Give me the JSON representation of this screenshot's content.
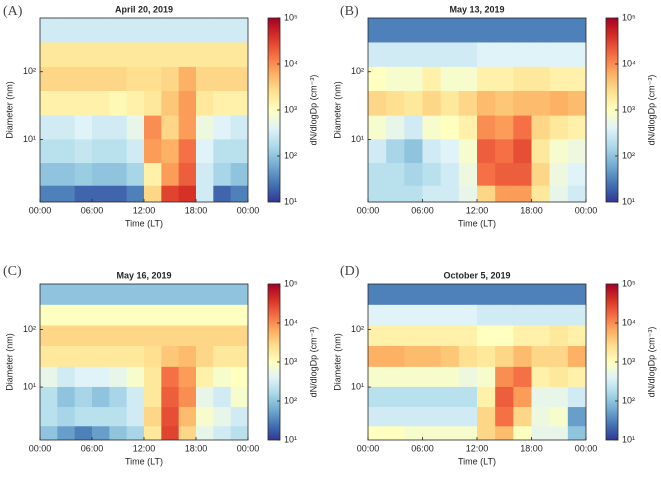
{
  "chart_data": [
    {
      "type": "heatmap",
      "panel_label": "(A)",
      "title": "April 20, 2019",
      "x_label": "Time (LT)",
      "y_label": "Diameter (nm)",
      "colorbar_label": "dN/dlogDp (cm⁻³)",
      "x": [
        1,
        3,
        5,
        7,
        9,
        11,
        13,
        15,
        17,
        19,
        21,
        23
      ],
      "y": [
        1.5,
        3,
        7,
        15,
        35,
        80,
        180,
        420
      ],
      "z": [
        [
          30,
          30,
          20,
          20,
          20,
          30,
          3000,
          30000,
          40000,
          300,
          20,
          30
        ],
        [
          100,
          100,
          120,
          100,
          100,
          150,
          1500,
          8000,
          20000,
          300,
          150,
          100
        ],
        [
          200,
          200,
          250,
          200,
          200,
          300,
          8000,
          6000,
          15000,
          400,
          200,
          200
        ],
        [
          300,
          300,
          400,
          300,
          300,
          500,
          10000,
          3000,
          8000,
          600,
          400,
          300
        ],
        [
          1500,
          1500,
          1500,
          1500,
          1200,
          1500,
          2000,
          4000,
          8000,
          2000,
          1500,
          1500
        ],
        [
          3000,
          3000,
          3000,
          3000,
          3000,
          2500,
          2500,
          3000,
          6000,
          3000,
          3000,
          3000
        ],
        [
          2000,
          2000,
          2000,
          2000,
          2000,
          2000,
          2000,
          2000,
          2000,
          2000,
          2000,
          2000
        ],
        [
          300,
          300,
          300,
          300,
          300,
          300,
          300,
          300,
          300,
          300,
          300,
          300
        ]
      ],
      "xlim": [
        0,
        24
      ],
      "xticks": [
        {
          "value": 0,
          "label": "00:00"
        },
        {
          "value": 6,
          "label": "06:00"
        },
        {
          "value": 12,
          "label": "12:00"
        },
        {
          "value": 18,
          "label": "18:00"
        },
        {
          "value": 24,
          "label": "00:00"
        }
      ],
      "ylim": [
        1.2,
        620
      ],
      "yticks": [
        {
          "value": 10,
          "label": "10¹"
        },
        {
          "value": 100,
          "label": "10²"
        }
      ],
      "ylog": true,
      "clim": [
        10,
        100000
      ],
      "cticks": [
        {
          "value": 10,
          "label": "10¹"
        },
        {
          "value": 100,
          "label": "10²"
        },
        {
          "value": 1000,
          "label": "10³"
        },
        {
          "value": 10000,
          "label": "10⁴"
        },
        {
          "value": 100000,
          "label": "10⁵"
        }
      ],
      "clog": true,
      "colormap": [
        "#313695",
        "#4575b4",
        "#74add1",
        "#abd9e9",
        "#e0f3f8",
        "#ffffbf",
        "#fee090",
        "#fdae61",
        "#f46d43",
        "#d73027",
        "#a50026"
      ]
    },
    {
      "type": "heatmap",
      "panel_label": "(B)",
      "title": "May 13, 2019",
      "x_label": "Time (LT)",
      "y_label": "Diameter (nm)",
      "colorbar_label": "dN/dlogDp (cm⁻³)",
      "x": [
        1,
        3,
        5,
        7,
        9,
        11,
        13,
        15,
        17,
        19,
        21,
        23
      ],
      "y": [
        1.5,
        3,
        7,
        15,
        35,
        80,
        180,
        420
      ],
      "z": [
        [
          200,
          200,
          200,
          300,
          300,
          500,
          3000,
          8000,
          8000,
          2000,
          500,
          300
        ],
        [
          200,
          200,
          150,
          200,
          300,
          600,
          15000,
          20000,
          20000,
          3000,
          600,
          400
        ],
        [
          300,
          150,
          100,
          300,
          400,
          800,
          20000,
          15000,
          25000,
          2000,
          800,
          600
        ],
        [
          800,
          500,
          300,
          800,
          1000,
          1500,
          10000,
          8000,
          15000,
          3000,
          2000,
          1500
        ],
        [
          3000,
          2500,
          2000,
          3000,
          2000,
          3000,
          5000,
          4000,
          5000,
          5000,
          6000,
          5000
        ],
        [
          1000,
          800,
          800,
          1500,
          800,
          800,
          1500,
          1500,
          2000,
          2000,
          1500,
          1500
        ],
        [
          300,
          300,
          300,
          300,
          300,
          300,
          400,
          400,
          400,
          400,
          400,
          400
        ],
        [
          30,
          30,
          30,
          30,
          30,
          30,
          30,
          30,
          30,
          30,
          30,
          30
        ]
      ],
      "xlim": [
        0,
        24
      ],
      "xticks": [
        {
          "value": 0,
          "label": "00:00"
        },
        {
          "value": 6,
          "label": "06:00"
        },
        {
          "value": 12,
          "label": "12:00"
        },
        {
          "value": 18,
          "label": "18:00"
        },
        {
          "value": 24,
          "label": "00:00"
        }
      ],
      "ylim": [
        1.2,
        620
      ],
      "yticks": [
        {
          "value": 10,
          "label": "10¹"
        },
        {
          "value": 100,
          "label": "10²"
        }
      ],
      "ylog": true,
      "clim": [
        10,
        100000
      ],
      "cticks": [
        {
          "value": 10,
          "label": "10¹"
        },
        {
          "value": 100,
          "label": "10²"
        },
        {
          "value": 1000,
          "label": "10³"
        },
        {
          "value": 10000,
          "label": "10⁴"
        },
        {
          "value": 100000,
          "label": "10⁵"
        }
      ],
      "clog": true,
      "colormap": [
        "#313695",
        "#4575b4",
        "#74add1",
        "#abd9e9",
        "#e0f3f8",
        "#ffffbf",
        "#fee090",
        "#fdae61",
        "#f46d43",
        "#d73027",
        "#a50026"
      ]
    },
    {
      "type": "heatmap",
      "panel_label": "(C)",
      "title": "May 16, 2019",
      "x_label": "Time (LT)",
      "y_label": "Diameter (nm)",
      "colorbar_label": "dN/dlogDp (cm⁻³)",
      "x": [
        1,
        3,
        5,
        7,
        9,
        11,
        13,
        15,
        17,
        19,
        21,
        23
      ],
      "y": [
        1.5,
        3,
        7,
        15,
        35,
        80,
        180,
        420
      ],
      "z": [
        [
          100,
          50,
          30,
          50,
          100,
          150,
          2000,
          30000,
          3000,
          500,
          300,
          200
        ],
        [
          200,
          150,
          200,
          200,
          200,
          300,
          3000,
          25000,
          5000,
          800,
          500,
          300
        ],
        [
          200,
          100,
          150,
          100,
          150,
          300,
          2000,
          20000,
          10000,
          500,
          300,
          800
        ],
        [
          500,
          300,
          400,
          400,
          500,
          800,
          2000,
          15000,
          8000,
          1500,
          800,
          1000
        ],
        [
          2000,
          2000,
          2000,
          2000,
          2000,
          2000,
          2500,
          4000,
          5000,
          3000,
          2000,
          2000
        ],
        [
          3000,
          3000,
          3000,
          3000,
          3000,
          3000,
          3000,
          3000,
          3000,
          3000,
          3000,
          3000
        ],
        [
          1000,
          1000,
          1000,
          1000,
          1000,
          1000,
          1000,
          1000,
          1000,
          1000,
          1000,
          1000
        ],
        [
          100,
          100,
          100,
          100,
          100,
          100,
          100,
          100,
          100,
          100,
          100,
          100
        ]
      ],
      "xlim": [
        0,
        24
      ],
      "xticks": [
        {
          "value": 0,
          "label": "00:00"
        },
        {
          "value": 6,
          "label": "06:00"
        },
        {
          "value": 12,
          "label": "12:00"
        },
        {
          "value": 18,
          "label": "18:00"
        },
        {
          "value": 24,
          "label": "00:00"
        }
      ],
      "ylim": [
        1.2,
        620
      ],
      "yticks": [
        {
          "value": 10,
          "label": "10¹"
        },
        {
          "value": 100,
          "label": "10²"
        }
      ],
      "ylog": true,
      "clim": [
        10,
        100000
      ],
      "cticks": [
        {
          "value": 10,
          "label": "10¹"
        },
        {
          "value": 100,
          "label": "10²"
        },
        {
          "value": 1000,
          "label": "10³"
        },
        {
          "value": 10000,
          "label": "10⁴"
        },
        {
          "value": 100000,
          "label": "10⁵"
        }
      ],
      "clog": true,
      "colormap": [
        "#313695",
        "#4575b4",
        "#74add1",
        "#abd9e9",
        "#e0f3f8",
        "#ffffbf",
        "#fee090",
        "#fdae61",
        "#f46d43",
        "#d73027",
        "#a50026"
      ]
    },
    {
      "type": "heatmap",
      "panel_label": "(D)",
      "title": "October 5, 2019",
      "x_label": "Time (LT)",
      "y_label": "Diameter (nm)",
      "colorbar_label": "dN/dlogDp (cm⁻³)",
      "x": [
        1,
        3,
        5,
        7,
        9,
        11,
        13,
        15,
        17,
        19,
        21,
        23
      ],
      "y": [
        1.5,
        3,
        7,
        15,
        35,
        80,
        180,
        420
      ],
      "z": [
        [
          1000,
          1000,
          800,
          800,
          800,
          800,
          3000,
          5000,
          1000,
          500,
          500,
          100
        ],
        [
          300,
          300,
          300,
          300,
          300,
          300,
          3000,
          15000,
          3000,
          600,
          800,
          50
        ],
        [
          200,
          200,
          200,
          200,
          200,
          200,
          1500,
          20000,
          8000,
          500,
          500,
          300
        ],
        [
          800,
          800,
          800,
          800,
          800,
          600,
          800,
          10000,
          15000,
          1500,
          2000,
          1500
        ],
        [
          6000,
          6000,
          5000,
          5000,
          4000,
          2500,
          2000,
          3000,
          5000,
          3000,
          3000,
          6000
        ],
        [
          1500,
          1500,
          1500,
          1500,
          1500,
          1500,
          1000,
          1000,
          1500,
          1500,
          2000,
          1500
        ],
        [
          400,
          400,
          400,
          400,
          400,
          400,
          300,
          300,
          300,
          300,
          300,
          300
        ],
        [
          30,
          30,
          30,
          30,
          30,
          30,
          30,
          30,
          30,
          30,
          30,
          30
        ]
      ],
      "xlim": [
        0,
        24
      ],
      "xticks": [
        {
          "value": 0,
          "label": "00:00"
        },
        {
          "value": 6,
          "label": "06:00"
        },
        {
          "value": 12,
          "label": "12:00"
        },
        {
          "value": 18,
          "label": "18:00"
        },
        {
          "value": 24,
          "label": "00:00"
        }
      ],
      "ylim": [
        1.2,
        620
      ],
      "yticks": [
        {
          "value": 10,
          "label": "10¹"
        },
        {
          "value": 100,
          "label": "10²"
        }
      ],
      "ylog": true,
      "clim": [
        10,
        100000
      ],
      "cticks": [
        {
          "value": 10,
          "label": "10¹"
        },
        {
          "value": 100,
          "label": "10²"
        },
        {
          "value": 1000,
          "label": "10³"
        },
        {
          "value": 10000,
          "label": "10⁴"
        },
        {
          "value": 100000,
          "label": "10⁵"
        }
      ],
      "clog": true,
      "colormap": [
        "#313695",
        "#4575b4",
        "#74add1",
        "#abd9e9",
        "#e0f3f8",
        "#ffffbf",
        "#fee090",
        "#fdae61",
        "#f46d43",
        "#d73027",
        "#a50026"
      ]
    }
  ]
}
